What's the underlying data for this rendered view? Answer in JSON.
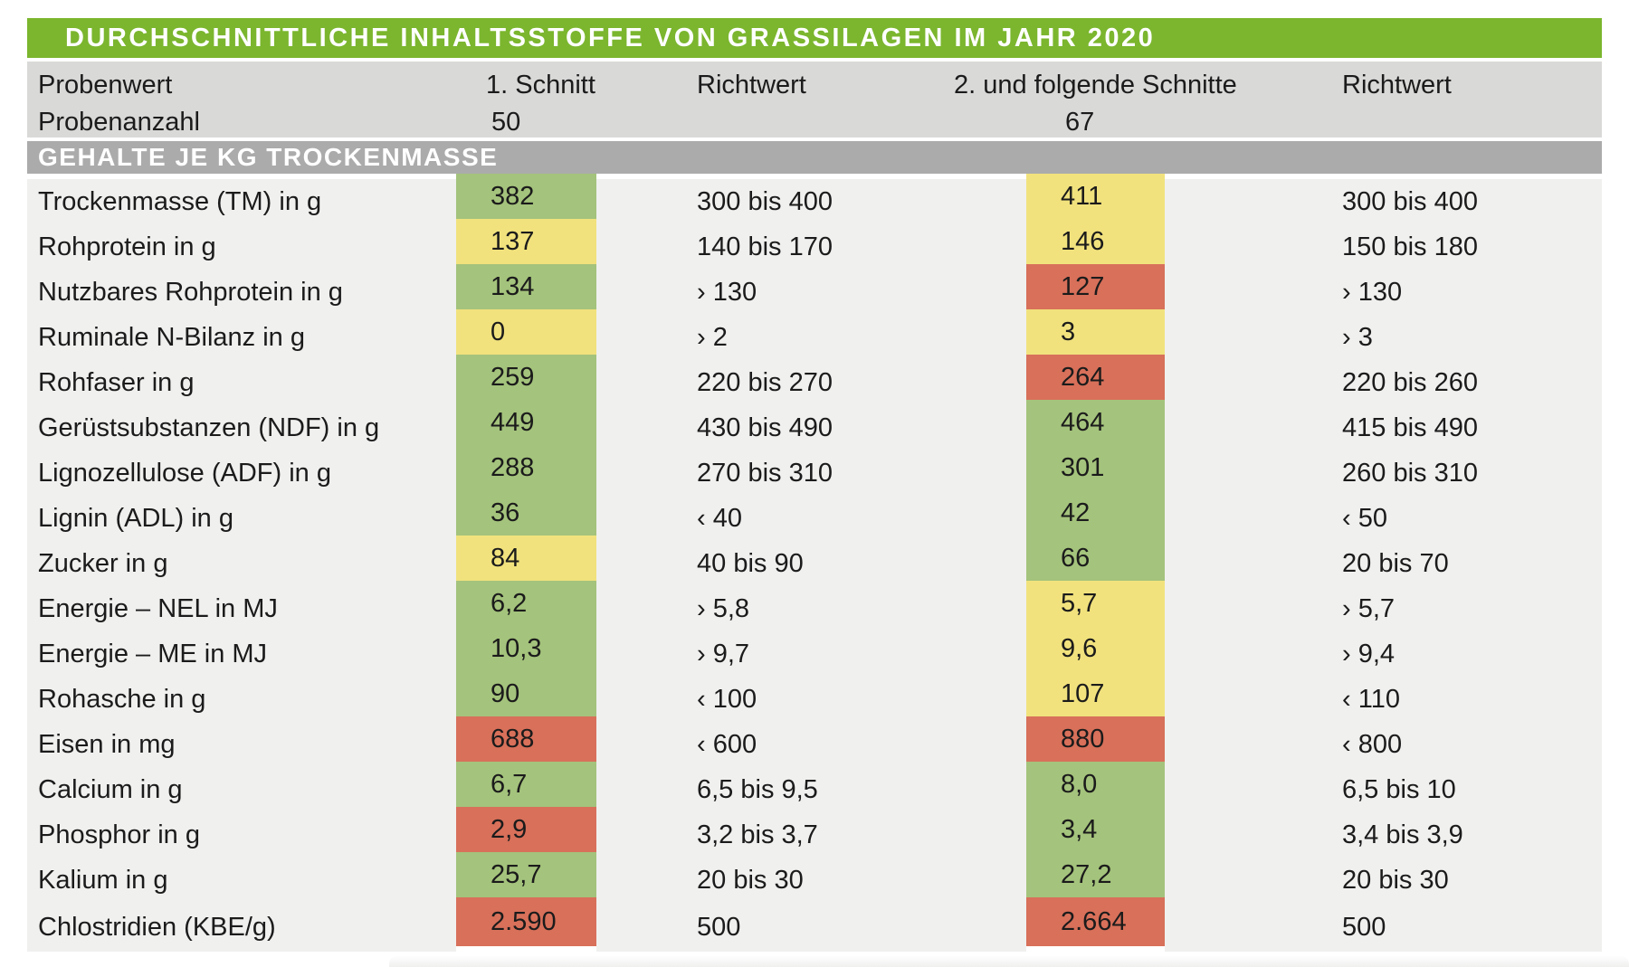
{
  "chart_data": {
    "type": "table",
    "title": "DURCHSCHNITTLICHE INHALTSSTOFFE VON GRASSILAGEN IM JAHR 2020",
    "header": {
      "col_label": "Probenwert",
      "col_cut1": "1. Schnitt",
      "col_richtwert1": "Richtwert",
      "col_cut2": "2. und folgende Schnitte",
      "col_richtwert2": "Richtwert",
      "samples_label": "Probenanzahl",
      "samples_cut1": "50",
      "samples_cut2": "67"
    },
    "section": "GEHALTE JE KG TROCKENMASSE",
    "colors": {
      "green": "#a4c37c",
      "yellow": "#f1e27d",
      "red": "#d8705a",
      "title_bg": "#7bb62e",
      "section_bg": "#ababab",
      "header_bg": "#d9d9d8",
      "row_bg": "#f0f0ef"
    },
    "rows": [
      {
        "label": "Trockenmasse (TM) in g",
        "cut1": "382",
        "cut1_color": "green",
        "richtwert1": "300 bis 400",
        "cut2": "411",
        "cut2_color": "yellow",
        "richtwert2": "300 bis 400"
      },
      {
        "label": "Rohprotein in g",
        "cut1": "137",
        "cut1_color": "yellow",
        "richtwert1": "140 bis 170",
        "cut2": "146",
        "cut2_color": "yellow",
        "richtwert2": "150 bis 180"
      },
      {
        "label": "Nutzbares Rohprotein in g",
        "cut1": "134",
        "cut1_color": "green",
        "richtwert1": "› 130",
        "cut2": "127",
        "cut2_color": "red",
        "richtwert2": "› 130"
      },
      {
        "label": "Ruminale N-Bilanz in g",
        "cut1": "0",
        "cut1_color": "yellow",
        "richtwert1": "› 2",
        "cut2": "3",
        "cut2_color": "yellow",
        "richtwert2": "› 3"
      },
      {
        "label": "Rohfaser in g",
        "cut1": "259",
        "cut1_color": "green",
        "richtwert1": "220 bis 270",
        "cut2": "264",
        "cut2_color": "red",
        "richtwert2": "220 bis 260"
      },
      {
        "label": "Gerüstsubstanzen (NDF) in g",
        "cut1": "449",
        "cut1_color": "green",
        "richtwert1": "430 bis 490",
        "cut2": "464",
        "cut2_color": "green",
        "richtwert2": "415 bis 490"
      },
      {
        "label": "Lignozellulose (ADF) in g",
        "cut1": "288",
        "cut1_color": "green",
        "richtwert1": "270 bis 310",
        "cut2": "301",
        "cut2_color": "green",
        "richtwert2": "260 bis 310"
      },
      {
        "label": "Lignin (ADL) in g",
        "cut1": "36",
        "cut1_color": "green",
        "richtwert1": "‹ 40",
        "cut2": "42",
        "cut2_color": "green",
        "richtwert2": "‹ 50"
      },
      {
        "label": "Zucker in g",
        "cut1": "84",
        "cut1_color": "yellow",
        "richtwert1": "40 bis 90",
        "cut2": "66",
        "cut2_color": "green",
        "richtwert2": "20 bis 70"
      },
      {
        "label": "Energie – NEL in MJ",
        "cut1": "6,2",
        "cut1_color": "green",
        "richtwert1": "› 5,8",
        "cut2": "5,7",
        "cut2_color": "yellow",
        "richtwert2": "› 5,7"
      },
      {
        "label": "Energie – ME in MJ",
        "cut1": "10,3",
        "cut1_color": "green",
        "richtwert1": "› 9,7",
        "cut2": "9,6",
        "cut2_color": "yellow",
        "richtwert2": "› 9,4"
      },
      {
        "label": "Rohasche in g",
        "cut1": "90",
        "cut1_color": "green",
        "richtwert1": "‹ 100",
        "cut2": "107",
        "cut2_color": "yellow",
        "richtwert2": "‹ 110"
      },
      {
        "label": "Eisen in mg",
        "cut1": "688",
        "cut1_color": "red",
        "richtwert1": "‹ 600",
        "cut2": "880",
        "cut2_color": "red",
        "richtwert2": "‹ 800"
      },
      {
        "label": "Calcium in g",
        "cut1": "6,7",
        "cut1_color": "green",
        "richtwert1": "6,5 bis 9,5",
        "cut2": "8,0",
        "cut2_color": "green",
        "richtwert2": "6,5 bis 10"
      },
      {
        "label": "Phosphor in g",
        "cut1": "2,9",
        "cut1_color": "red",
        "richtwert1": "3,2 bis 3,7",
        "cut2": "3,4",
        "cut2_color": "green",
        "richtwert2": "3,4 bis 3,9"
      },
      {
        "label": "Kalium in g",
        "cut1": "25,7",
        "cut1_color": "green",
        "richtwert1": "20 bis 30",
        "cut2": "27,2",
        "cut2_color": "green",
        "richtwert2": "20 bis 30"
      },
      {
        "label": "Chlostridien (KBE/g)",
        "cut1": "2.590",
        "cut1_color": "red",
        "richtwert1": "500",
        "cut2": "2.664",
        "cut2_color": "red",
        "richtwert2": "500"
      }
    ]
  }
}
